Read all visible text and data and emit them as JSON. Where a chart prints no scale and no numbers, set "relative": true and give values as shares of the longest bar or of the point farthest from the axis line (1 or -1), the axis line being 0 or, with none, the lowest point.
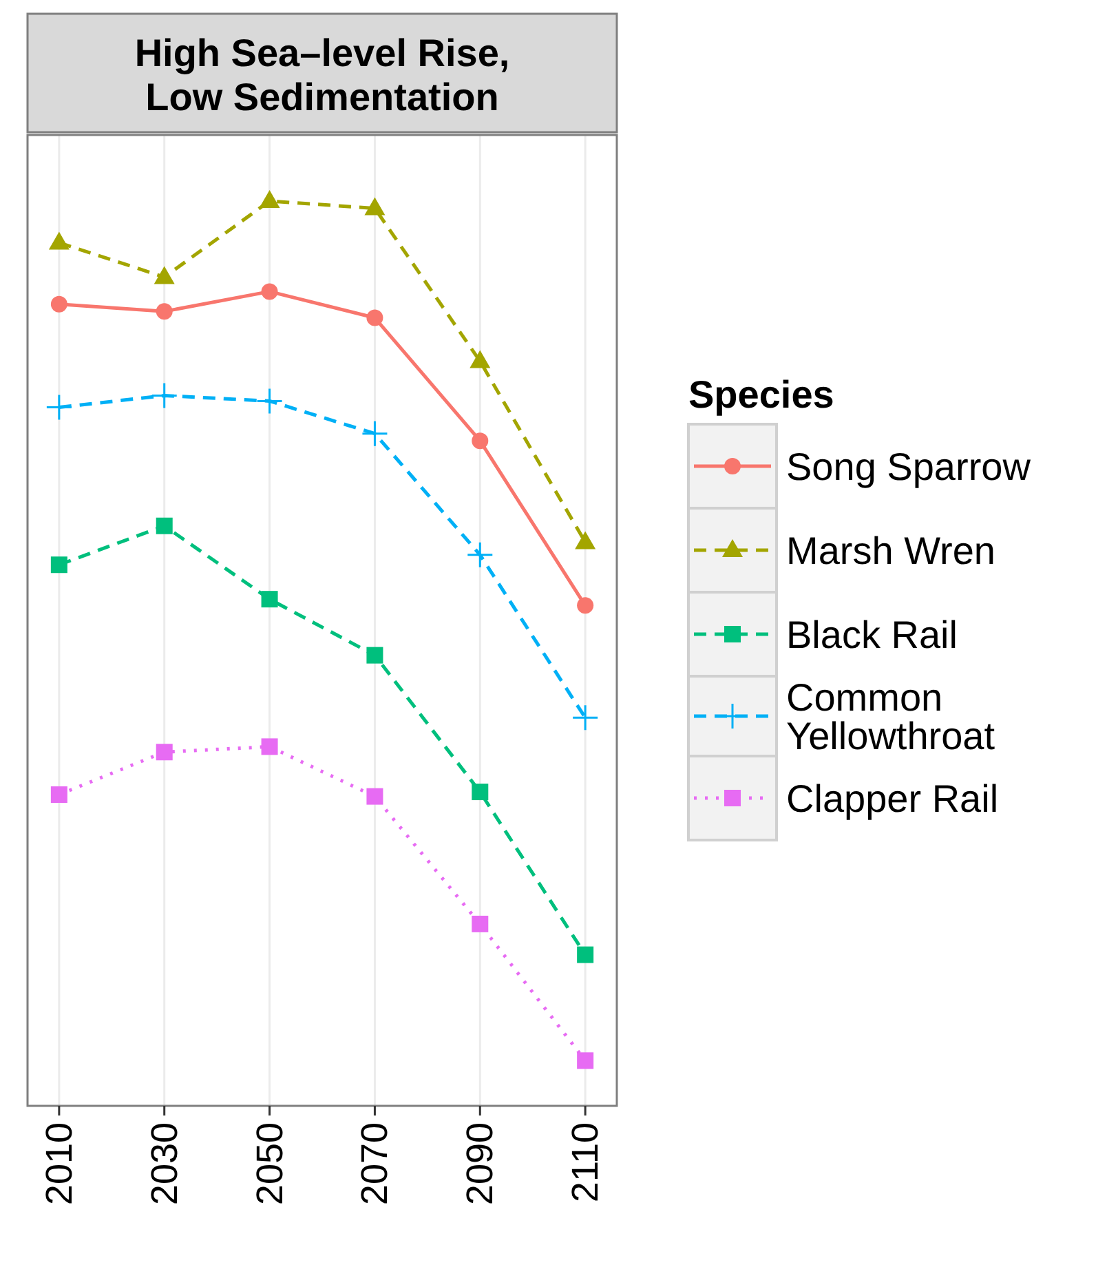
{
  "chart_data": {
    "type": "line",
    "title": "High Sea–level Rise,\nLow Sedimentation",
    "categories": [
      "2010",
      "2030",
      "2050",
      "2070",
      "2090",
      "2110"
    ],
    "relative": true,
    "grid": "x",
    "legend": "right",
    "legend_title": "Species",
    "series": [
      {
        "name": "Song Sparrow",
        "color": "#f8766d",
        "marker": "circle",
        "line_style": "solid",
        "values": [
          0.886,
          0.878,
          0.9,
          0.871,
          0.735,
          0.553
        ]
      },
      {
        "name": "Marsh Wren",
        "color": "#a3a500",
        "marker": "triangle",
        "line_style": "dashed",
        "values": [
          0.954,
          0.916,
          1.0,
          0.992,
          0.823,
          0.623
        ]
      },
      {
        "name": "Black Rail",
        "color": "#00bf7d",
        "marker": "square",
        "line_style": "dashed",
        "values": [
          0.598,
          0.641,
          0.56,
          0.498,
          0.347,
          0.167
        ]
      },
      {
        "name": "Common Yellowthroat",
        "color": "#00b0f6",
        "marker": "cross",
        "line_style": "dashed",
        "values": [
          0.772,
          0.785,
          0.779,
          0.743,
          0.609,
          0.429
        ]
      },
      {
        "name": "Clapper Rail",
        "color": "#e76bf3",
        "marker": "square",
        "line_style": "dotted",
        "values": [
          0.344,
          0.391,
          0.397,
          0.342,
          0.201,
          0.05
        ]
      }
    ]
  }
}
